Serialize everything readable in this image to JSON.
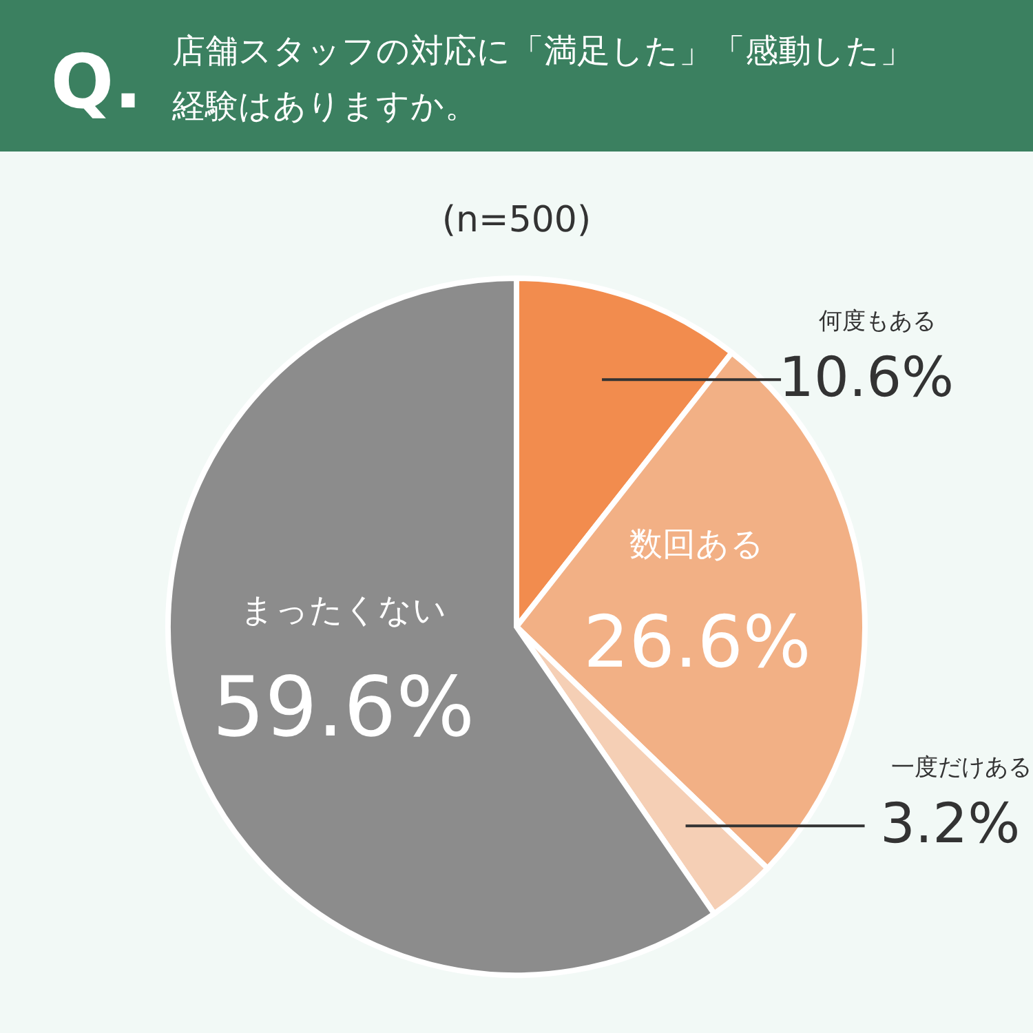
{
  "chart_data": {
    "type": "pie",
    "title": "店舗スタッフの対応に「満足した」「感動した」経験はありますか。",
    "subtitle": "(n=500)",
    "annotations": [
      "Q."
    ],
    "categories": [
      "何度もある",
      "数回ある",
      "一度だけある",
      "まったくない"
    ],
    "values": [
      10.6,
      26.6,
      3.2,
      59.6
    ],
    "colors": [
      "#f28c4e",
      "#f2b085",
      "#f5cfb5",
      "#8c8c8c"
    ],
    "value_labels": [
      "10.6%",
      "26.6%",
      "3.2%",
      "59.6%"
    ]
  }
}
